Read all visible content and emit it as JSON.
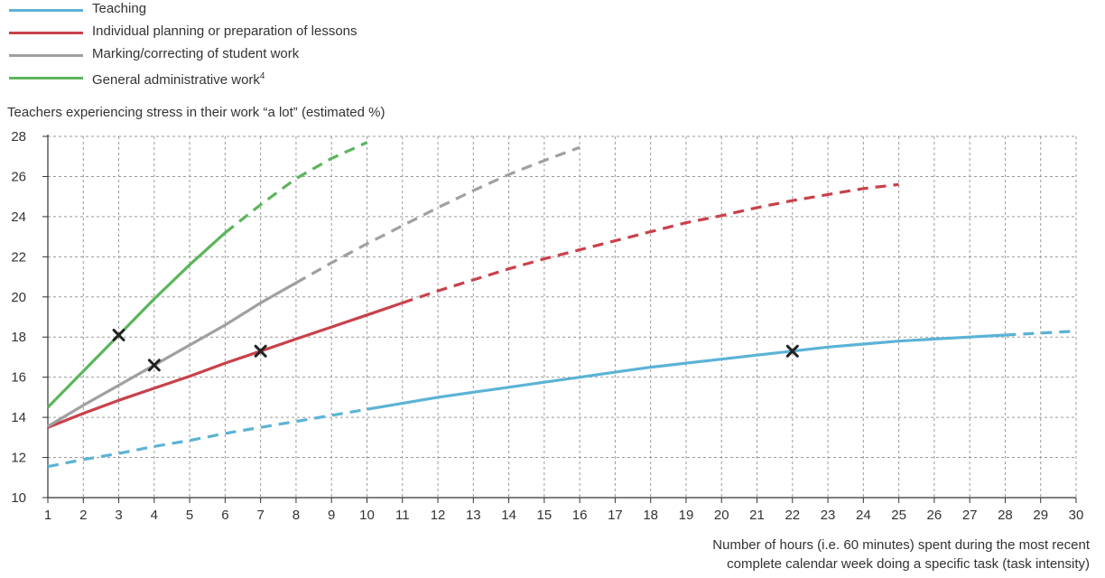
{
  "chart_data": {
    "type": "line",
    "title": "",
    "ylabel": "Teachers experiencing stress in their work “a lot” (estimated %)",
    "xlabel_lines": [
      "Number of hours (i.e. 60 minutes) spent during the most recent",
      "complete calendar week doing a specific task (task intensity)"
    ],
    "xlim": [
      1,
      30
    ],
    "ylim": [
      10,
      28
    ],
    "xticks": [
      1,
      2,
      3,
      4,
      5,
      6,
      7,
      8,
      9,
      10,
      11,
      12,
      13,
      14,
      15,
      16,
      17,
      18,
      19,
      20,
      21,
      22,
      23,
      24,
      25,
      26,
      27,
      28,
      29,
      30
    ],
    "yticks": [
      10,
      12,
      14,
      16,
      18,
      20,
      22,
      24,
      26,
      28
    ],
    "grid": true,
    "legend_position": "top-left",
    "series": [
      {
        "name": "Teaching",
        "color": "#5bb3d6",
        "x": [
          1,
          2,
          3,
          4,
          5,
          6,
          7,
          8,
          9,
          10,
          11,
          12,
          13,
          14,
          15,
          16,
          17,
          18,
          19,
          20,
          21,
          22,
          23,
          24,
          25,
          26,
          27,
          28,
          29,
          30
        ],
        "y": [
          11.55,
          11.9,
          12.2,
          12.55,
          12.85,
          13.2,
          13.5,
          13.8,
          14.1,
          14.4,
          14.7,
          15.0,
          15.25,
          15.5,
          15.75,
          16.0,
          16.25,
          16.5,
          16.7,
          16.9,
          17.1,
          17.3,
          17.5,
          17.65,
          17.8,
          17.9,
          18.0,
          18.1,
          18.2,
          18.3
        ],
        "solid_range": [
          10,
          28
        ],
        "marker": {
          "x": 22,
          "y": 17.3
        }
      },
      {
        "name": "Individual planning or preparation of lessons",
        "color": "#c9414a",
        "x": [
          1,
          2,
          3,
          4,
          5,
          6,
          7,
          8,
          9,
          10,
          11,
          12,
          13,
          14,
          15,
          16,
          17,
          18,
          19,
          20,
          21,
          22,
          23,
          24,
          25
        ],
        "y": [
          13.5,
          14.2,
          14.85,
          15.45,
          16.05,
          16.7,
          17.3,
          17.9,
          18.5,
          19.1,
          19.7,
          20.3,
          20.85,
          21.4,
          21.9,
          22.35,
          22.8,
          23.25,
          23.7,
          24.05,
          24.45,
          24.8,
          25.1,
          25.4,
          25.6
        ],
        "solid_range": [
          1,
          11
        ],
        "marker": {
          "x": 7,
          "y": 17.3
        }
      },
      {
        "name": "Marking/correcting of student work",
        "color": "#a0a0a0",
        "x": [
          1,
          2,
          3,
          4,
          5,
          6,
          7,
          8,
          9,
          10,
          11,
          12,
          13,
          14,
          15,
          16
        ],
        "y": [
          13.55,
          14.6,
          15.6,
          16.6,
          17.6,
          18.6,
          19.7,
          20.7,
          21.7,
          22.65,
          23.55,
          24.45,
          25.3,
          26.1,
          26.8,
          27.45
        ],
        "solid_range": [
          1,
          8
        ],
        "marker": {
          "x": 4,
          "y": 16.6
        }
      },
      {
        "name": "General administrative work",
        "legend_superscript": "4",
        "color": "#5cb55b",
        "x": [
          1,
          2,
          3,
          4,
          5,
          6,
          7,
          8,
          9,
          10
        ],
        "y": [
          14.5,
          16.3,
          18.1,
          19.9,
          21.6,
          23.2,
          24.6,
          25.9,
          26.9,
          27.7
        ],
        "solid_range": [
          1,
          6
        ],
        "marker": {
          "x": 3,
          "y": 18.1
        }
      }
    ]
  }
}
